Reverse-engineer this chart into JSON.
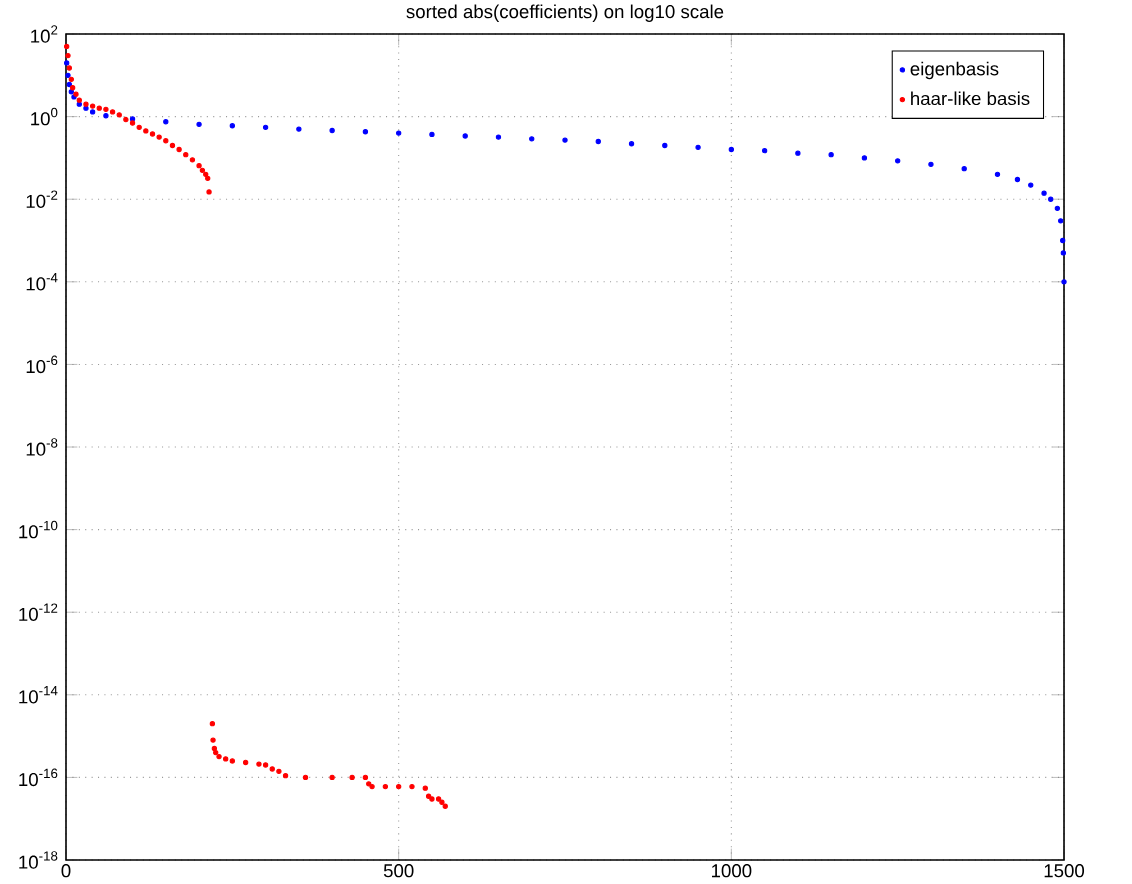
{
  "chart_data": {
    "type": "scatter",
    "title": "sorted abs(coefficients) on log10 scale",
    "log": "y",
    "grid": true,
    "legend": "top right",
    "marker": "circle",
    "xlim": [
      0,
      1500
    ],
    "ylim": [
      1e-18,
      100
    ],
    "xticks": [
      0,
      500,
      1000,
      1500
    ],
    "yticks": [
      {
        "value": 1e-18,
        "label": "10$^{-18}$"
      },
      {
        "value": 1e-16,
        "label": "10$^{-16}$"
      },
      {
        "value": 1e-14,
        "label": "10$^{-14}$"
      },
      {
        "value": 1e-12,
        "label": "10$^{-12}$"
      },
      {
        "value": 1e-10,
        "label": "10$^{-10}$"
      },
      {
        "value": 1e-08,
        "label": "10$^{-8}$"
      },
      {
        "value": 1e-06,
        "label": "10$^{-6}$"
      },
      {
        "value": 0.0001,
        "label": "10$^{-4}$"
      },
      {
        "value": 0.01,
        "label": "10$^{-2}$"
      },
      {
        "value": 1,
        "label": "10$^{0}$"
      },
      {
        "value": 100,
        "label": "10$^{2}$"
      }
    ],
    "series": [
      {
        "name": "eigenbasis",
        "color": "#0000ff",
        "x": [
          1,
          3,
          5,
          8,
          12,
          20,
          30,
          40,
          60,
          100,
          150,
          200,
          250,
          300,
          350,
          400,
          450,
          500,
          550,
          600,
          650,
          700,
          750,
          800,
          850,
          900,
          950,
          1000,
          1050,
          1100,
          1150,
          1200,
          1250,
          1300,
          1350,
          1400,
          1430,
          1450,
          1470,
          1480,
          1490,
          1495,
          1498,
          1499,
          1500
        ],
        "values": [
          20,
          10,
          6,
          4,
          3,
          2,
          1.6,
          1.3,
          1.05,
          0.88,
          0.75,
          0.65,
          0.6,
          0.55,
          0.5,
          0.46,
          0.43,
          0.4,
          0.37,
          0.34,
          0.32,
          0.29,
          0.27,
          0.25,
          0.22,
          0.2,
          0.18,
          0.16,
          0.15,
          0.13,
          0.12,
          0.1,
          0.085,
          0.07,
          0.055,
          0.04,
          0.03,
          0.022,
          0.014,
          0.01,
          0.006,
          0.003,
          0.001,
          0.0005,
          0.0001
        ]
      },
      {
        "name": "haar-like basis",
        "color": "#ff0000",
        "x": [
          1,
          3,
          5,
          8,
          10,
          15,
          20,
          30,
          40,
          50,
          60,
          70,
          80,
          90,
          100,
          110,
          120,
          130,
          140,
          150,
          160,
          170,
          180,
          190,
          200,
          205,
          210,
          213,
          215,
          220,
          221,
          223,
          225,
          230,
          240,
          250,
          270,
          290,
          300,
          310,
          320,
          330,
          360,
          400,
          430,
          450,
          455,
          460,
          480,
          500,
          520,
          540,
          545,
          550,
          560,
          565,
          570
        ],
        "values": [
          50,
          30,
          15,
          8,
          5,
          3.5,
          2.5,
          2,
          1.8,
          1.6,
          1.5,
          1.3,
          1.1,
          0.85,
          0.7,
          0.55,
          0.45,
          0.38,
          0.32,
          0.26,
          0.2,
          0.16,
          0.12,
          0.09,
          0.065,
          0.05,
          0.04,
          0.032,
          0.015,
          2e-15,
          8e-16,
          5e-16,
          4e-16,
          3.2e-16,
          2.8e-16,
          2.5e-16,
          2.3e-16,
          2.1e-16,
          2e-16,
          1.6e-16,
          1.4e-16,
          1.1e-16,
          1e-16,
          1e-16,
          1e-16,
          1e-16,
          7e-17,
          6e-17,
          6e-17,
          6e-17,
          6e-17,
          5.5e-17,
          3.5e-17,
          3e-17,
          3e-17,
          2.5e-17,
          2e-17
        ]
      }
    ]
  }
}
